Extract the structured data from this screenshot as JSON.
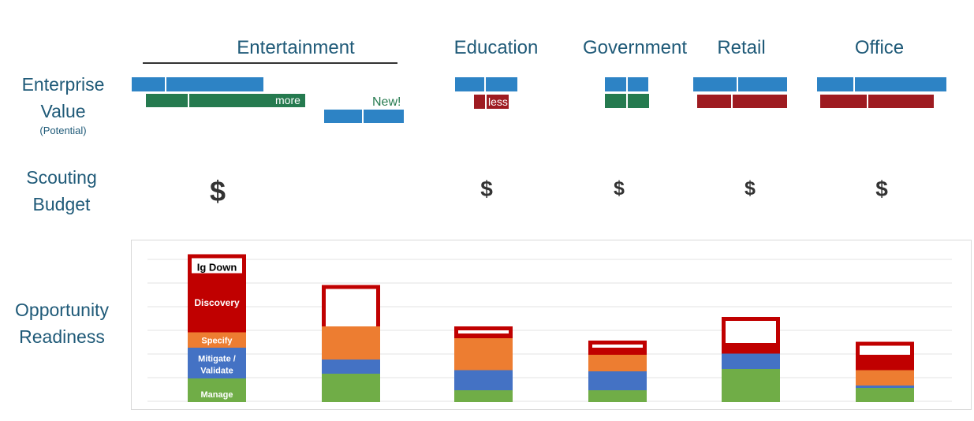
{
  "row_labels": {
    "value_line1": "Enterprise",
    "value_line2": "Value",
    "value_sub": "(Potential)",
    "budget_line1": "Scouting",
    "budget_line2": "Budget",
    "readiness_line1": "Opportunity",
    "readiness_line2": "Readiness"
  },
  "headers": [
    "Entertainment",
    "Education",
    "Government",
    "Retail",
    "Office"
  ],
  "value_notes": {
    "more": "more",
    "new": "New!",
    "less": "less"
  },
  "budget_symbol": "$",
  "colors": {
    "title_blue": "#1f5a78",
    "value_blue": "#2d83c5",
    "value_green": "#257a4f",
    "value_red": "#9e1b21",
    "manage": "#70ad47",
    "mitigate": "#4472c4",
    "specify": "#ed7d31",
    "discovery": "#c00000"
  },
  "chart_data": {
    "type": "bar",
    "stacked": true,
    "title": "",
    "xlabel": "",
    "ylabel": "",
    "grid": true,
    "categories": [
      "",
      "",
      "",
      "",
      "",
      ""
    ],
    "series": [
      {
        "name": "Manage",
        "values": [
          1.0,
          1.2,
          0.5,
          0.5,
          1.4,
          0.6
        ]
      },
      {
        "name": "Mitigate / Validate",
        "values": [
          1.3,
          0.6,
          0.85,
          0.8,
          0.65,
          0.1
        ]
      },
      {
        "name": "Specify",
        "values": [
          0.65,
          1.4,
          1.35,
          0.7,
          0.0,
          0.65
        ]
      },
      {
        "name": "Discovery",
        "values": [
          2.5,
          0.0,
          0.2,
          0.3,
          0.45,
          0.65
        ]
      },
      {
        "name": "Ig Down",
        "values": [
          0.8,
          1.75,
          0.3,
          0.3,
          1.1,
          0.55
        ]
      }
    ],
    "labels": {
      "ig_down": "Ig Down",
      "discovery": "Discovery",
      "specify": "Specify",
      "mitigate_1": "Mitigate /",
      "mitigate_2": "Validate",
      "manage": "Manage"
    },
    "ylim": [
      0,
      6
    ]
  }
}
